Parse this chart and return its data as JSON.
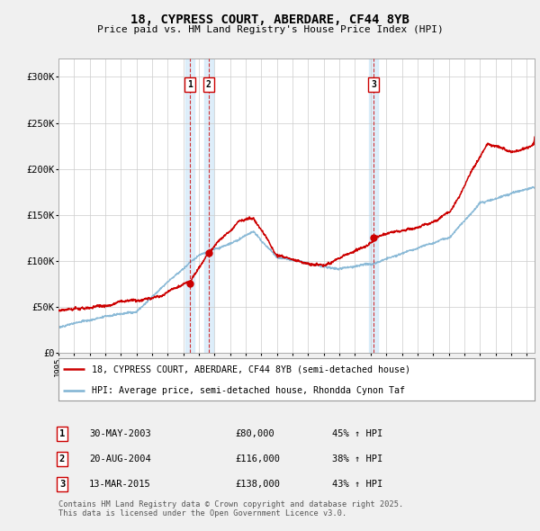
{
  "title": "18, CYPRESS COURT, ABERDARE, CF44 8YB",
  "subtitle": "Price paid vs. HM Land Registry's House Price Index (HPI)",
  "red_label": "18, CYPRESS COURT, ABERDARE, CF44 8YB (semi-detached house)",
  "blue_label": "HPI: Average price, semi-detached house, Rhondda Cynon Taf",
  "footnote": "Contains HM Land Registry data © Crown copyright and database right 2025.\nThis data is licensed under the Open Government Licence v3.0.",
  "transactions": [
    {
      "num": 1,
      "date": "30-MAY-2003",
      "price": 80000,
      "hpi_pct": "45% ↑ HPI",
      "x": 2003.41
    },
    {
      "num": 2,
      "date": "20-AUG-2004",
      "price": 116000,
      "hpi_pct": "38% ↑ HPI",
      "x": 2004.63
    },
    {
      "num": 3,
      "date": "13-MAR-2015",
      "price": 138000,
      "hpi_pct": "43% ↑ HPI",
      "x": 2015.2
    }
  ],
  "ylim": [
    0,
    320000
  ],
  "yticks": [
    0,
    50000,
    100000,
    150000,
    200000,
    250000,
    300000
  ],
  "ytick_labels": [
    "£0",
    "£50K",
    "£100K",
    "£150K",
    "£200K",
    "£250K",
    "£300K"
  ],
  "red_color": "#cc0000",
  "blue_color": "#7fb3d3",
  "dashed_color": "#cc0000",
  "shade_color": "#d0e8f8",
  "background_color": "#f0f0f0",
  "plot_bg": "#ffffff",
  "xlim_start": 1995,
  "xlim_end": 2025.5
}
